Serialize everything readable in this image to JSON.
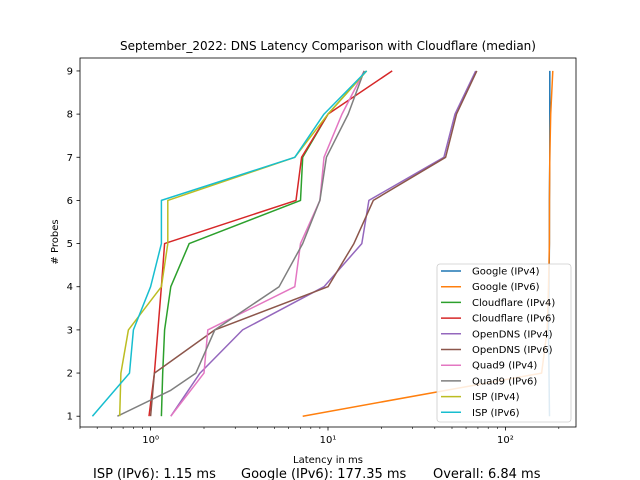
{
  "chart_data": {
    "type": "line",
    "title": "September_2022: DNS Latency Comparison with Cloudflare (median)",
    "xlabel": "Latency in ms",
    "ylabel": "# Probes",
    "xscale": "log",
    "xlim": [
      0.4,
      250
    ],
    "ylim": [
      0.75,
      9.3
    ],
    "x_ticks": [
      {
        "value": 1,
        "label": "10⁰"
      },
      {
        "value": 10,
        "label": "10¹"
      },
      {
        "value": 100,
        "label": "10²"
      }
    ],
    "y_ticks": [
      1,
      2,
      3,
      4,
      5,
      6,
      7,
      8,
      9
    ],
    "grid": false,
    "legend_position": "lower-right",
    "series": [
      {
        "name": "Google (IPv4)",
        "color": "#1f77b4",
        "points": [
          [
            177.35,
            1
          ],
          [
            176,
            2
          ],
          [
            175,
            3
          ],
          [
            176,
            4
          ],
          [
            177,
            5
          ],
          [
            177,
            6
          ],
          [
            178,
            7
          ],
          [
            178,
            8
          ],
          [
            178,
            9
          ]
        ]
      },
      {
        "name": "Google (IPv6)",
        "color": "#ff7f0e",
        "points": [
          [
            7.2,
            1
          ],
          [
            160,
            2
          ],
          [
            172,
            3
          ],
          [
            175,
            4
          ],
          [
            177,
            5
          ],
          [
            177.35,
            6
          ],
          [
            178,
            7
          ],
          [
            180,
            8
          ],
          [
            185,
            9
          ]
        ]
      },
      {
        "name": "Cloudflare (IPv4)",
        "color": "#2ca02c",
        "points": [
          [
            1.15,
            1
          ],
          [
            1.17,
            2
          ],
          [
            1.2,
            3
          ],
          [
            1.3,
            4
          ],
          [
            1.65,
            5
          ],
          [
            7.0,
            6
          ],
          [
            7.2,
            7
          ],
          [
            10,
            8
          ],
          [
            16.5,
            9
          ]
        ]
      },
      {
        "name": "Cloudflare (IPv6)",
        "color": "#d62728",
        "points": [
          [
            0.98,
            1
          ],
          [
            1.05,
            2
          ],
          [
            1.1,
            3
          ],
          [
            1.15,
            4
          ],
          [
            1.2,
            5
          ],
          [
            6.6,
            6
          ],
          [
            7.1,
            7
          ],
          [
            10,
            8
          ],
          [
            23,
            9
          ]
        ]
      },
      {
        "name": "OpenDNS (IPv4)",
        "color": "#9467bd",
        "points": [
          [
            1.3,
            1
          ],
          [
            1.9,
            2
          ],
          [
            3.3,
            3
          ],
          [
            9.5,
            4
          ],
          [
            15.5,
            5
          ],
          [
            17,
            6
          ],
          [
            45,
            7
          ],
          [
            52,
            8
          ],
          [
            68,
            9
          ]
        ]
      },
      {
        "name": "OpenDNS (IPv6)",
        "color": "#8c564b",
        "points": [
          [
            1.0,
            1
          ],
          [
            1.05,
            2
          ],
          [
            2.3,
            3
          ],
          [
            10,
            4
          ],
          [
            14,
            5
          ],
          [
            18,
            6
          ],
          [
            46,
            7
          ],
          [
            53,
            8
          ],
          [
            69,
            9
          ]
        ]
      },
      {
        "name": "Quad9 (IPv4)",
        "color": "#e377c2",
        "points": [
          [
            1.3,
            1
          ],
          [
            2.0,
            2
          ],
          [
            2.1,
            3
          ],
          [
            6.5,
            4
          ],
          [
            7.0,
            5
          ],
          [
            9.0,
            6
          ],
          [
            9.5,
            7
          ],
          [
            12,
            8
          ],
          [
            16,
            9
          ]
        ]
      },
      {
        "name": "Quad9 (IPv6)",
        "color": "#7f7f7f",
        "points": [
          [
            0.65,
            1
          ],
          [
            1.3,
            1.6
          ],
          [
            1.8,
            2
          ],
          [
            2.3,
            3
          ],
          [
            5.3,
            4
          ],
          [
            7.2,
            5
          ],
          [
            9.0,
            6
          ],
          [
            9.8,
            7
          ],
          [
            13,
            8
          ],
          [
            16,
            9
          ]
        ]
      },
      {
        "name": "ISP (IPv4)",
        "color": "#bcbd22",
        "points": [
          [
            0.67,
            1
          ],
          [
            0.68,
            2
          ],
          [
            0.75,
            3
          ],
          [
            1.15,
            4
          ],
          [
            1.25,
            5
          ],
          [
            1.25,
            6
          ],
          [
            6.5,
            7
          ],
          [
            10,
            8
          ],
          [
            16.5,
            9
          ]
        ]
      },
      {
        "name": "ISP (IPv6)",
        "color": "#17becf",
        "points": [
          [
            0.47,
            1
          ],
          [
            0.76,
            2
          ],
          [
            0.8,
            3
          ],
          [
            1.0,
            4
          ],
          [
            1.15,
            5
          ],
          [
            1.15,
            6
          ],
          [
            6.5,
            7
          ],
          [
            9.5,
            8
          ],
          [
            16.5,
            9
          ]
        ]
      }
    ]
  },
  "summary": [
    {
      "label": "ISP (IPv6): 1.15 ms"
    },
    {
      "label": "Google (IPv6): 177.35 ms"
    },
    {
      "label": "Overall: 6.84 ms"
    }
  ]
}
